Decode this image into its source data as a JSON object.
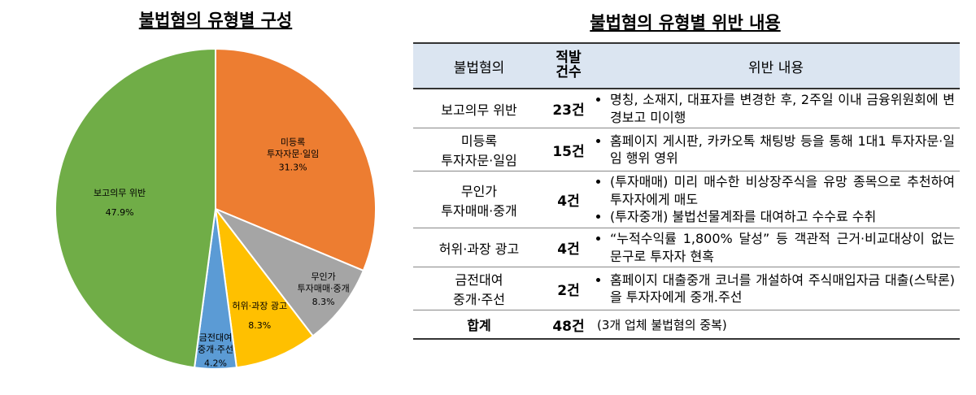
{
  "chart_data": {
    "type": "pie",
    "title": "불법혐의 유형별 구성",
    "categories": [
      "미등록\n투자자문·일임",
      "무인가\n투자매매·중개",
      "허위·과장 광고",
      "금전대여\n중개·주선",
      "보고의무 위반"
    ],
    "values": [
      31.3,
      8.3,
      8.3,
      4.2,
      47.9
    ],
    "value_labels": [
      "31.3%",
      "8.3%",
      "8.3%",
      "4.2%",
      "47.9%"
    ],
    "colors": [
      "#ed7d31",
      "#a5a5a5",
      "#ffc000",
      "#5b9bd5",
      "#70ad47"
    ]
  },
  "table": {
    "title": "불법혐의 유형별 위반 내용",
    "header": [
      "불법혐의",
      "적발\n건수",
      "위반 내용"
    ],
    "rows": [
      [
        "보고의무 위반",
        "23건",
        [
          "명칭, 소재지, 대표자를 변경한 후, 2주일 이내 금융위원회에 변경보고 미이행"
        ]
      ],
      [
        "미등록\n투자자문·일임",
        "15건",
        [
          "홈페이지 게시판, 카카오톡 채팅방 등을 통해 1대1 투자자문·일임 행위 영위"
        ]
      ],
      [
        "무인가\n투자매매·중개",
        "4건",
        [
          "(투자매매) 미리 매수한 비상장주식을 유망 종목으로 추천하여 투자자에게 매도",
          "(투자중개) 불법선물계좌를 대여하고 수수료 수취"
        ]
      ],
      [
        "허위·과장 광고",
        "4건",
        [
          "“누적수익률 1,800% 달성” 등 객관적 근거·비교대상이 없는 문구로 투자자 현혹"
        ]
      ],
      [
        "금전대여\n중개·주선",
        "2건",
        [
          "홈페이지 대출중개 코너를 개설하여 주식매입자금 대출(스탁론)을 투자자에게 중개.주선"
        ]
      ]
    ],
    "total": [
      "합계",
      "48건",
      "(3개 업체 불법혐의 중복)"
    ]
  }
}
